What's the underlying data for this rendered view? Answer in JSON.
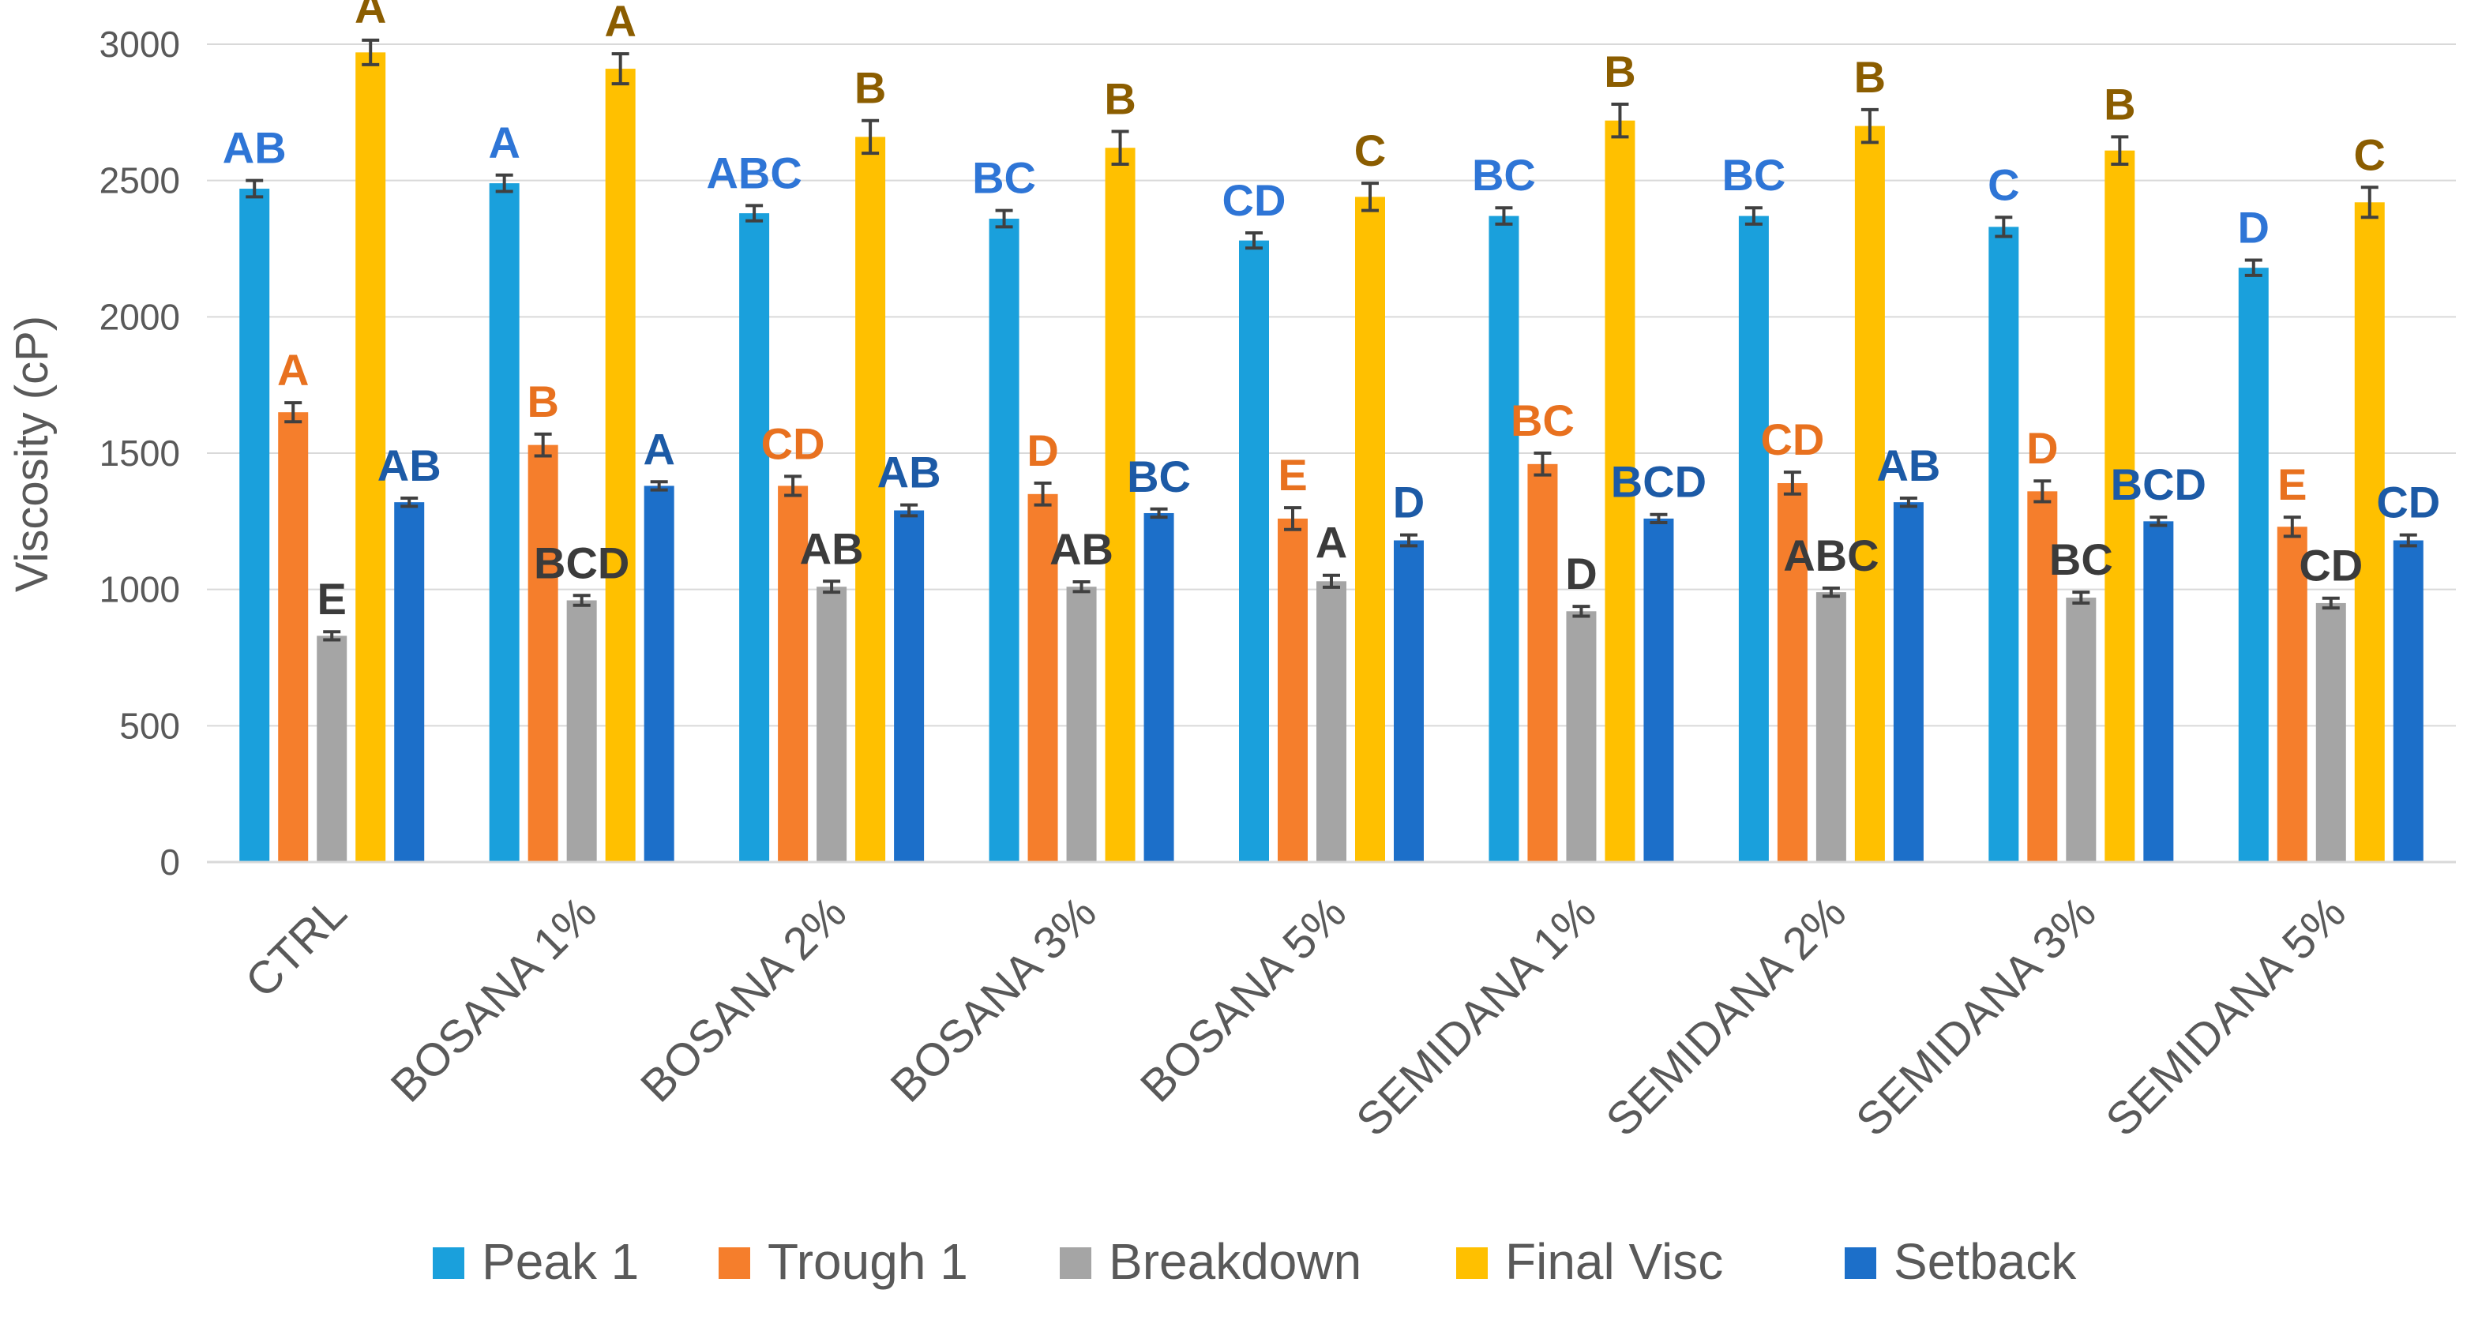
{
  "chart_data": {
    "type": "bar",
    "ylabel": "Viscosity (cP)",
    "xlabel": "",
    "ylim": [
      0,
      3000
    ],
    "ytick_step": 500,
    "yticks": [
      "0",
      "500",
      "1000",
      "1500",
      "2000",
      "2500",
      "3000"
    ],
    "grid": true,
    "legend_position": "bottom",
    "categories": [
      "CTRL",
      "BOSANA 1%",
      "BOSANA 2%",
      "BOSANA 3%",
      "BOSANA 5%",
      "SEMIDANA 1%",
      "SEMIDANA 2%",
      "SEMIDANA 3%",
      "SEMIDANA 5%"
    ],
    "series": [
      {
        "name": "Peak 1",
        "color": "#1aa0dc",
        "label_color": "#2e75d6",
        "values": [
          2470,
          2490,
          2380,
          2360,
          2280,
          2370,
          2370,
          2330,
          2180
        ],
        "errors": [
          30,
          30,
          28,
          30,
          28,
          30,
          30,
          35,
          28
        ],
        "letters": [
          "AB",
          "A",
          "ABC",
          "BC",
          "CD",
          "BC",
          "BC",
          "C",
          "D"
        ]
      },
      {
        "name": "Trough 1",
        "color": "#f57e2c",
        "label_color": "#e8711f",
        "values": [
          1650,
          1530,
          1380,
          1350,
          1260,
          1460,
          1390,
          1360,
          1230
        ],
        "errors": [
          35,
          40,
          35,
          40,
          40,
          40,
          40,
          38,
          35
        ],
        "letters": [
          "A",
          "B",
          "CD",
          "D",
          "E",
          "BC",
          "CD",
          "D",
          "E"
        ]
      },
      {
        "name": "Breakdown",
        "color": "#a5a5a5",
        "label_color": "#3b3b3b",
        "values": [
          830,
          960,
          1010,
          1010,
          1030,
          920,
          990,
          970,
          950
        ],
        "errors": [
          15,
          18,
          20,
          18,
          22,
          18,
          15,
          20,
          18
        ],
        "letters": [
          "E",
          "BCD",
          "AB",
          "AB",
          "A",
          "D",
          "ABC",
          "BC",
          "CD"
        ]
      },
      {
        "name": "Final Visc",
        "color": "#ffc000",
        "label_color": "#8b5d00",
        "values": [
          2970,
          2910,
          2660,
          2620,
          2440,
          2720,
          2700,
          2610,
          2420
        ],
        "errors": [
          45,
          55,
          60,
          60,
          50,
          60,
          60,
          50,
          55
        ],
        "letters": [
          "A",
          "A",
          "B",
          "B",
          "C",
          "B",
          "B",
          "B",
          "C"
        ]
      },
      {
        "name": "Setback",
        "color": "#1c6fc9",
        "label_color": "#1c5aa6",
        "values": [
          1320,
          1380,
          1290,
          1280,
          1180,
          1260,
          1320,
          1250,
          1180
        ],
        "errors": [
          15,
          15,
          20,
          15,
          20,
          15,
          15,
          15,
          20
        ],
        "letters": [
          "AB",
          "A",
          "AB",
          "BC",
          "D",
          "BCD",
          "AB",
          "BCD",
          "CD"
        ]
      }
    ]
  }
}
